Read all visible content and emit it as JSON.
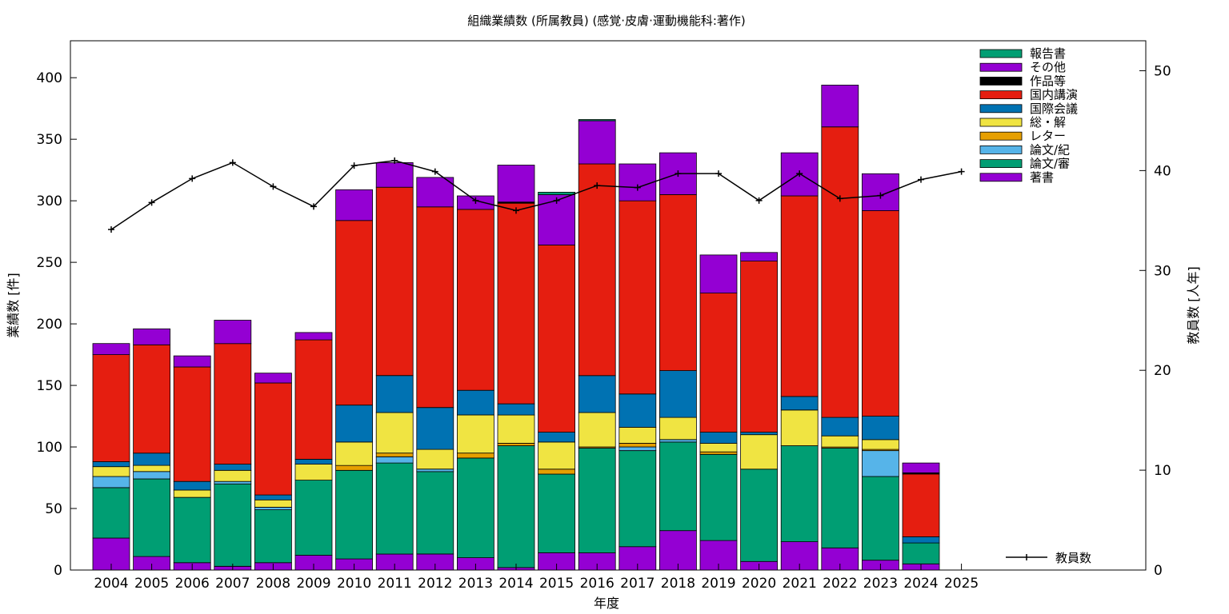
{
  "chart_data": {
    "type": "bar",
    "title": "組織業績数 (所属教員) (感覚·皮膚·運動機能科:著作)",
    "xlabel": "年度",
    "ylabel": "業績数 [件]",
    "y2label": "教員数 [人年]",
    "ylim": [
      0,
      430
    ],
    "y2lim": [
      0,
      53
    ],
    "yticks": [
      "0",
      "50",
      "100",
      "150",
      "200",
      "250",
      "300",
      "350",
      "400"
    ],
    "y2ticks": [
      "0",
      "10",
      "20",
      "30",
      "40",
      "50"
    ],
    "grid": false,
    "legend_position": "top-right",
    "categories": [
      "2004",
      "2005",
      "2006",
      "2007",
      "2008",
      "2009",
      "2010",
      "2011",
      "2012",
      "2013",
      "2014",
      "2015",
      "2016",
      "2017",
      "2018",
      "2019",
      "2020",
      "2021",
      "2022",
      "2023",
      "2024",
      "2025"
    ],
    "series": [
      {
        "name": "著書",
        "color": "#9400d3",
        "values": [
          26,
          11,
          6,
          3,
          6,
          12,
          9,
          13,
          13,
          10,
          2,
          14,
          14,
          19,
          32,
          24,
          7,
          23,
          18,
          8,
          5,
          0
        ]
      },
      {
        "name": "論文/審",
        "color": "#009e73",
        "values": [
          41,
          63,
          53,
          67,
          43,
          61,
          72,
          74,
          67,
          81,
          99,
          64,
          85,
          78,
          72,
          70,
          75,
          78,
          81,
          68,
          17,
          0
        ]
      },
      {
        "name": "論文/紀",
        "color": "#56b4e9",
        "values": [
          9,
          6,
          0,
          2,
          2,
          0,
          0,
          5,
          2,
          0,
          0,
          0,
          0,
          3,
          2,
          0,
          0,
          0,
          0,
          21,
          0,
          0
        ]
      },
      {
        "name": "レター",
        "color": "#e69f00",
        "values": [
          0,
          0,
          0,
          0,
          0,
          0,
          4,
          3,
          0,
          4,
          2,
          4,
          1,
          3,
          0,
          2,
          0,
          0,
          1,
          1,
          0,
          0
        ]
      },
      {
        "name": "総・解",
        "color": "#f0e442",
        "values": [
          8,
          5,
          6,
          9,
          6,
          13,
          19,
          33,
          16,
          31,
          23,
          22,
          28,
          13,
          18,
          7,
          28,
          29,
          9,
          8,
          0,
          0
        ]
      },
      {
        "name": "国際会議",
        "color": "#0072b2",
        "values": [
          4,
          10,
          7,
          5,
          4,
          4,
          30,
          30,
          34,
          20,
          9,
          8,
          30,
          27,
          38,
          9,
          2,
          11,
          15,
          19,
          5,
          0
        ]
      },
      {
        "name": "国内講演",
        "color": "#e51e10",
        "values": [
          87,
          88,
          93,
          98,
          91,
          97,
          150,
          153,
          163,
          147,
          163,
          152,
          172,
          157,
          143,
          113,
          139,
          163,
          236,
          167,
          51,
          0
        ]
      },
      {
        "name": "作品等",
        "color": "#000000",
        "values": [
          0,
          0,
          0,
          0,
          0,
          0,
          0,
          0,
          0,
          0,
          1,
          0,
          0,
          0,
          0,
          0,
          0,
          0,
          0,
          0,
          1,
          0
        ]
      },
      {
        "name": "その他",
        "color": "#9400d3",
        "values": [
          9,
          13,
          9,
          19,
          8,
          6,
          25,
          20,
          24,
          11,
          30,
          41,
          35,
          30,
          34,
          31,
          7,
          35,
          34,
          30,
          8,
          0
        ]
      },
      {
        "name": "報告書",
        "color": "#009e73",
        "values": [
          0,
          0,
          0,
          0,
          0,
          0,
          0,
          0,
          0,
          0,
          0,
          2,
          1,
          0,
          0,
          0,
          0,
          0,
          0,
          0,
          0,
          0
        ]
      }
    ],
    "line_series": {
      "name": "教員数",
      "color": "#000000",
      "values": [
        34.1,
        36.8,
        39.2,
        40.8,
        38.4,
        36.4,
        40.5,
        41.0,
        39.9,
        37.0,
        36.0,
        37.0,
        38.5,
        38.3,
        39.7,
        39.7,
        37.0,
        39.7,
        37.2,
        37.5,
        39.1,
        39.9
      ]
    }
  }
}
